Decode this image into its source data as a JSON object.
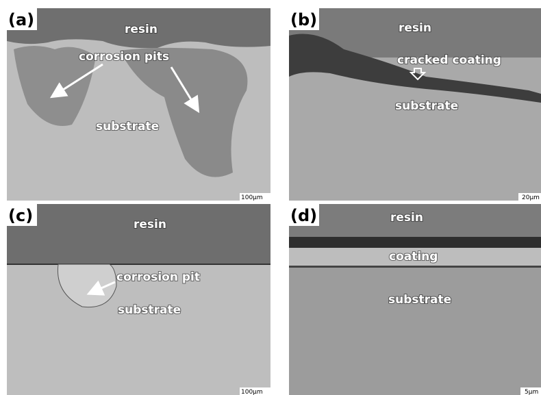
{
  "panels": [
    {
      "label": "(a)",
      "annotations": [
        "resin",
        "corrosion pits",
        "substrate"
      ],
      "scale_bar": "100μm"
    },
    {
      "label": "(b)",
      "annotations": [
        "resin",
        "cracked coating",
        "substrate"
      ],
      "scale_bar": "20μm"
    },
    {
      "label": "(c)",
      "annotations": [
        "resin",
        "corrosion pit",
        "substrate"
      ],
      "scale_bar": "100μm"
    },
    {
      "label": "(d)",
      "annotations": [
        "resin",
        "coating",
        "substrate"
      ],
      "scale_bar": "5μm"
    }
  ]
}
